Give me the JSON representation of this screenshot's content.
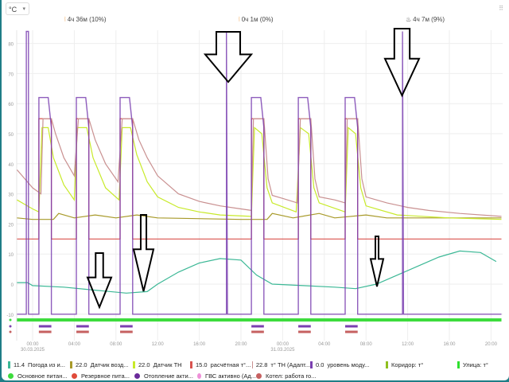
{
  "header": {
    "unit_select": "°C",
    "unit_caret": "▾",
    "grip": "⠿"
  },
  "stats": [
    {
      "icon": "heater-icon",
      "glyph": "⦚",
      "text": "4ч 36м (10%)"
    },
    {
      "icon": "heater-icon",
      "glyph": "⦚",
      "text": "0ч 1м (0%)"
    },
    {
      "icon": "flame-icon",
      "glyph": "🔥",
      "text": "4ч 7м (9%)"
    }
  ],
  "chart_data": {
    "type": "line",
    "xlabel": "",
    "ylabel": "°C",
    "ylim": [
      -10,
      85
    ],
    "y_ticks": [
      "80",
      "70",
      "60",
      "50",
      "40",
      "30",
      "20",
      "10",
      "0",
      "-10"
    ],
    "y_tick_values": [
      80,
      70,
      60,
      50,
      40,
      30,
      20,
      10,
      0,
      -10
    ],
    "x_unit": "hours since 30.03.2025 00:00",
    "xlim": [
      -1.5,
      45
    ],
    "x_ticks": [
      {
        "h": 0,
        "label": "00:00",
        "sub": "30.03.2025"
      },
      {
        "h": 4,
        "label": "04:00"
      },
      {
        "h": 8,
        "label": "08:00"
      },
      {
        "h": 12,
        "label": "12:00"
      },
      {
        "h": 16,
        "label": "16:00"
      },
      {
        "h": 20,
        "label": "20:00"
      },
      {
        "h": 24,
        "label": "00:00",
        "sub": "31.03.2025"
      },
      {
        "h": 28,
        "label": "04:00"
      },
      {
        "h": 32,
        "label": "08:00"
      },
      {
        "h": 36,
        "label": "12:00"
      },
      {
        "h": 40,
        "label": "16:00"
      },
      {
        "h": 44,
        "label": "20:00"
      }
    ],
    "grid": true,
    "series": [
      {
        "name": "Погода из интернета",
        "color": "#3cb896",
        "points": [
          [
            -1.5,
            0.5
          ],
          [
            -0.5,
            0.5
          ],
          [
            0,
            -0.5
          ],
          [
            3,
            -1
          ],
          [
            6,
            -2
          ],
          [
            9,
            -3
          ],
          [
            11,
            -2.5
          ],
          [
            12,
            0
          ],
          [
            14,
            4
          ],
          [
            16,
            7
          ],
          [
            18,
            8.5
          ],
          [
            20,
            8
          ],
          [
            21.5,
            3
          ],
          [
            23,
            0
          ],
          [
            26,
            -0.5
          ],
          [
            29,
            -1
          ],
          [
            31,
            -1.5
          ],
          [
            33,
            0
          ],
          [
            35,
            3
          ],
          [
            37,
            6
          ],
          [
            39,
            9
          ],
          [
            41,
            11
          ],
          [
            43,
            10.5
          ],
          [
            44.5,
            7.5
          ]
        ]
      },
      {
        "name": "Датчик воздуха",
        "color": "#a89a2a",
        "points": [
          [
            -1.5,
            22
          ],
          [
            0,
            21.5
          ],
          [
            2,
            21.5
          ],
          [
            2.5,
            23.5
          ],
          [
            4,
            22
          ],
          [
            6,
            23
          ],
          [
            8,
            22
          ],
          [
            10,
            23
          ],
          [
            12,
            22
          ],
          [
            20,
            21.5
          ],
          [
            22.5,
            21.5
          ],
          [
            23,
            23.5
          ],
          [
            25,
            22
          ],
          [
            27.5,
            23.5
          ],
          [
            29,
            22
          ],
          [
            32,
            23
          ],
          [
            34,
            22
          ],
          [
            45,
            22
          ]
        ]
      },
      {
        "name": "Датчик ТН",
        "color": "#c8ea2a",
        "points": [
          [
            -1.5,
            28
          ],
          [
            0,
            25
          ],
          [
            0.6,
            24
          ],
          [
            0.9,
            52
          ],
          [
            1.5,
            52
          ],
          [
            2,
            42
          ],
          [
            3,
            33
          ],
          [
            4,
            28
          ],
          [
            4.3,
            52
          ],
          [
            5.2,
            52
          ],
          [
            5.8,
            42
          ],
          [
            7,
            32
          ],
          [
            8.3,
            28
          ],
          [
            8.6,
            52
          ],
          [
            9.4,
            52
          ],
          [
            10,
            43
          ],
          [
            11,
            34
          ],
          [
            12,
            29
          ],
          [
            14,
            25.5
          ],
          [
            16,
            24
          ],
          [
            18,
            23
          ],
          [
            21,
            22.5
          ],
          [
            21.3,
            52
          ],
          [
            22,
            50
          ],
          [
            22.5,
            32
          ],
          [
            23,
            27
          ],
          [
            25.3,
            24
          ],
          [
            25.7,
            52
          ],
          [
            26.5,
            50
          ],
          [
            27,
            32
          ],
          [
            27.5,
            27
          ],
          [
            30,
            24
          ],
          [
            30.3,
            52
          ],
          [
            31,
            50
          ],
          [
            31.5,
            32
          ],
          [
            32,
            26
          ],
          [
            35,
            23
          ],
          [
            40,
            22
          ],
          [
            45,
            21.5
          ]
        ]
      },
      {
        "name": "расчётная т°",
        "color": "#d9534f",
        "points": [
          [
            -1.5,
            15
          ],
          [
            0.6,
            15
          ],
          [
            0.6,
            55
          ],
          [
            1.8,
            55
          ],
          [
            1.8,
            15
          ],
          [
            4.2,
            15
          ],
          [
            4.2,
            55
          ],
          [
            5.4,
            55
          ],
          [
            5.4,
            15
          ],
          [
            8.4,
            15
          ],
          [
            8.4,
            55
          ],
          [
            9.6,
            55
          ],
          [
            9.6,
            15
          ],
          [
            21,
            15
          ],
          [
            21,
            55
          ],
          [
            22.2,
            55
          ],
          [
            22.2,
            15
          ],
          [
            25.5,
            15
          ],
          [
            25.5,
            55
          ],
          [
            26.7,
            55
          ],
          [
            26.7,
            15
          ],
          [
            30,
            15
          ],
          [
            30,
            55
          ],
          [
            31.2,
            55
          ],
          [
            31.2,
            15
          ],
          [
            45,
            15
          ]
        ]
      },
      {
        "name": "т° ТН (Адапт...)",
        "color": "#c99090",
        "points": [
          [
            -1.5,
            38
          ],
          [
            0,
            32
          ],
          [
            0.8,
            30
          ],
          [
            1,
            55
          ],
          [
            1.8,
            55
          ],
          [
            2.2,
            50
          ],
          [
            3,
            42
          ],
          [
            4,
            36
          ],
          [
            4.4,
            55
          ],
          [
            5.4,
            55
          ],
          [
            6,
            48
          ],
          [
            7,
            40
          ],
          [
            8.2,
            34
          ],
          [
            8.6,
            55
          ],
          [
            9.6,
            55
          ],
          [
            10.2,
            48
          ],
          [
            11,
            42
          ],
          [
            12,
            36
          ],
          [
            14,
            30
          ],
          [
            16,
            27.5
          ],
          [
            18,
            26
          ],
          [
            20,
            25
          ],
          [
            21,
            24.5
          ],
          [
            21.2,
            55
          ],
          [
            22.2,
            55
          ],
          [
            22.6,
            35
          ],
          [
            23,
            29.5
          ],
          [
            24,
            28.5
          ],
          [
            25.4,
            27
          ],
          [
            25.7,
            55
          ],
          [
            26.7,
            55
          ],
          [
            27.1,
            35
          ],
          [
            27.5,
            29
          ],
          [
            29,
            28
          ],
          [
            30,
            27
          ],
          [
            30.2,
            55
          ],
          [
            31.2,
            55
          ],
          [
            31.6,
            35
          ],
          [
            32,
            29
          ],
          [
            34,
            27
          ],
          [
            36,
            25.5
          ],
          [
            38,
            24.5
          ],
          [
            41,
            23.5
          ],
          [
            45,
            22.5
          ]
        ]
      },
      {
        "name": "уровень модуляции",
        "color": "#7a3fb0",
        "points": [
          [
            -1.5,
            -10
          ],
          [
            -0.6,
            -10
          ],
          [
            -0.6,
            84
          ],
          [
            -0.4,
            84
          ],
          [
            -0.4,
            -10
          ],
          [
            0.6,
            -10
          ],
          [
            0.6,
            62
          ],
          [
            1.5,
            62
          ],
          [
            1.8,
            52
          ],
          [
            1.8,
            -10
          ],
          [
            4.2,
            -10
          ],
          [
            4.2,
            62
          ],
          [
            5.1,
            62
          ],
          [
            5.4,
            52
          ],
          [
            5.4,
            -10
          ],
          [
            8.4,
            -10
          ],
          [
            8.4,
            62
          ],
          [
            9.3,
            62
          ],
          [
            9.6,
            52
          ],
          [
            9.6,
            -10
          ],
          [
            18.6,
            -10
          ],
          [
            18.6,
            84
          ],
          [
            18.7,
            -10
          ],
          [
            21,
            -10
          ],
          [
            21,
            62
          ],
          [
            21.9,
            62
          ],
          [
            22.2,
            52
          ],
          [
            22.2,
            -10
          ],
          [
            25.5,
            -10
          ],
          [
            25.5,
            62
          ],
          [
            26.4,
            62
          ],
          [
            26.7,
            52
          ],
          [
            26.7,
            -10
          ],
          [
            30,
            -10
          ],
          [
            30,
            62
          ],
          [
            30.9,
            62
          ],
          [
            31.2,
            52
          ],
          [
            31.2,
            -10
          ],
          [
            35.5,
            -10
          ],
          [
            35.5,
            84
          ],
          [
            35.6,
            -10
          ],
          [
            45,
            -10
          ]
        ]
      }
    ],
    "status_lanes": [
      {
        "name": "Основное питание",
        "color": "#3ddc3d",
        "on": [
          [
            -1.5,
            45
          ]
        ]
      },
      {
        "name": "Отопление активно",
        "color": "#7a3fb0",
        "on": [
          [
            0.6,
            1.8
          ],
          [
            4.2,
            5.4
          ],
          [
            8.4,
            9.6
          ],
          [
            21,
            22.2
          ],
          [
            25.5,
            26.7
          ],
          [
            30,
            31.2
          ]
        ]
      },
      {
        "name": "Котел: работа горелки",
        "color": "#c66060",
        "on": [
          [
            0.6,
            1.8
          ],
          [
            4.2,
            5.4
          ],
          [
            8.4,
            9.6
          ],
          [
            21,
            22.2
          ],
          [
            25.5,
            26.7
          ],
          [
            30,
            31.2
          ]
        ]
      }
    ],
    "annotations": [
      {
        "type": "arrow-down",
        "h": 18.6
      },
      {
        "type": "arrow-down",
        "h": 35.7
      },
      {
        "type": "arrow-down",
        "h": 6.4
      },
      {
        "type": "arrow-down",
        "h": 10.6
      },
      {
        "type": "arrow-down",
        "h": 32.7
      }
    ]
  },
  "legend": {
    "row1": [
      {
        "value": "11.4",
        "label": "Погода из и...",
        "color": "#3cb896"
      },
      {
        "value": "22.0",
        "label": "Датчик возд...",
        "color": "#a89a2a"
      },
      {
        "value": "22.0",
        "label": "Датчик ТН",
        "color": "#c8ea2a"
      },
      {
        "value": "15.0",
        "label": "расчётная т°...",
        "color": "#d9534f"
      },
      {
        "value": "22.8",
        "label": "т° ТН (Адапт...",
        "color": "#c99090"
      },
      {
        "value": "0.0",
        "label": "уровень моду...",
        "color": "#7a3fb0"
      },
      {
        "value": "",
        "label": "Коридор: т°",
        "color": "#8fbf1f"
      },
      {
        "value": "",
        "label": "Улица: т°",
        "color": "#2ee02e"
      }
    ],
    "row2": [
      {
        "label": "Основное питан...",
        "color": "#3ddc3d"
      },
      {
        "label": "Резервное пита...",
        "color": "#e04a3a"
      },
      {
        "label": "Отопление акти...",
        "color": "#6a2a9a"
      },
      {
        "label": "ГВС активно (Ад...",
        "color": "#ee90d8"
      },
      {
        "label": "Котел: работа го...",
        "color": "#c66060"
      }
    ]
  }
}
